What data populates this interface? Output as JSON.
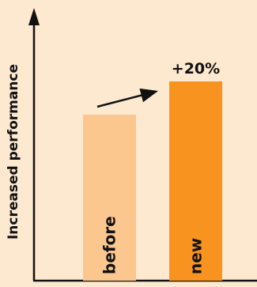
{
  "chart_data": {
    "type": "bar",
    "title": "",
    "xlabel": "",
    "ylabel": "Increased performance",
    "categories": [
      "before",
      "new"
    ],
    "values": [
      100,
      120
    ],
    "ylim": [
      0,
      180
    ],
    "bar_colors": [
      "#fbc78f",
      "#f7931e"
    ],
    "background_color": "#fde8d0",
    "annotation": {
      "text": "+20%",
      "from_category": "before",
      "to_category": "new"
    },
    "grid": false,
    "legend": "none"
  }
}
